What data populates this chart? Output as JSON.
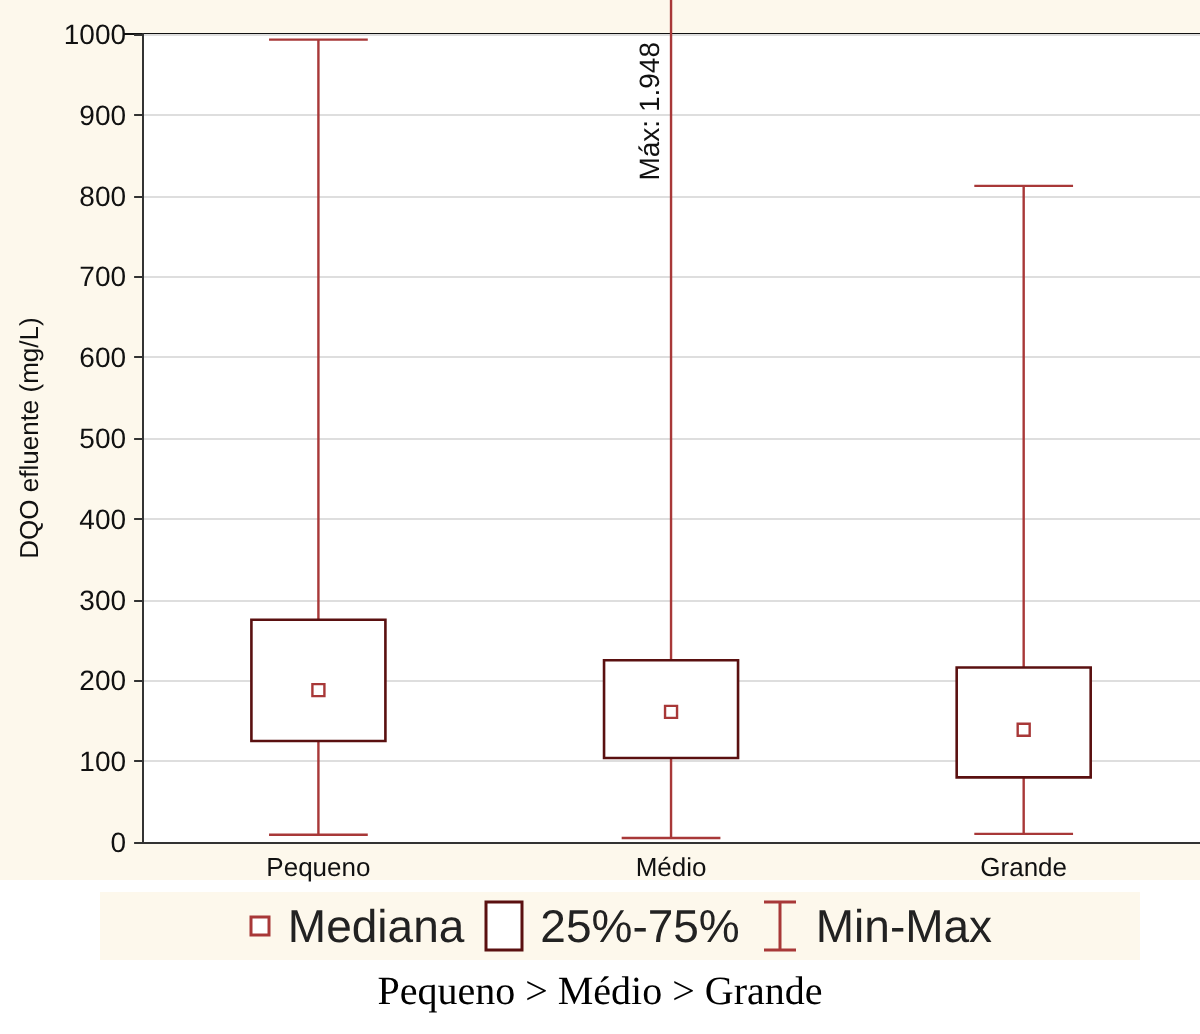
{
  "chart_data": {
    "type": "box",
    "ylabel": "DQO efluente (mg/L)",
    "categories": [
      "Pequeno",
      "Médio",
      "Grande"
    ],
    "boxes": [
      {
        "low": 9,
        "q1": 125,
        "median": 188,
        "q3": 275,
        "high": 993
      },
      {
        "low": 5,
        "q1": 104,
        "median": 161,
        "q3": 225,
        "high": 1948
      },
      {
        "low": 10,
        "q1": 80,
        "median": 139,
        "q3": 216,
        "high": 812
      }
    ],
    "color": "#5a1010",
    "ylim": [
      0,
      1000
    ],
    "yticks": [
      0,
      100,
      200,
      300,
      400,
      500,
      600,
      700,
      800,
      900,
      1000
    ],
    "grid": "y",
    "annotations": [
      "Máx: 1.948",
      "Mediana",
      "25%-75%",
      "Min-Max",
      "Pequeno > Médio > Grande"
    ]
  }
}
